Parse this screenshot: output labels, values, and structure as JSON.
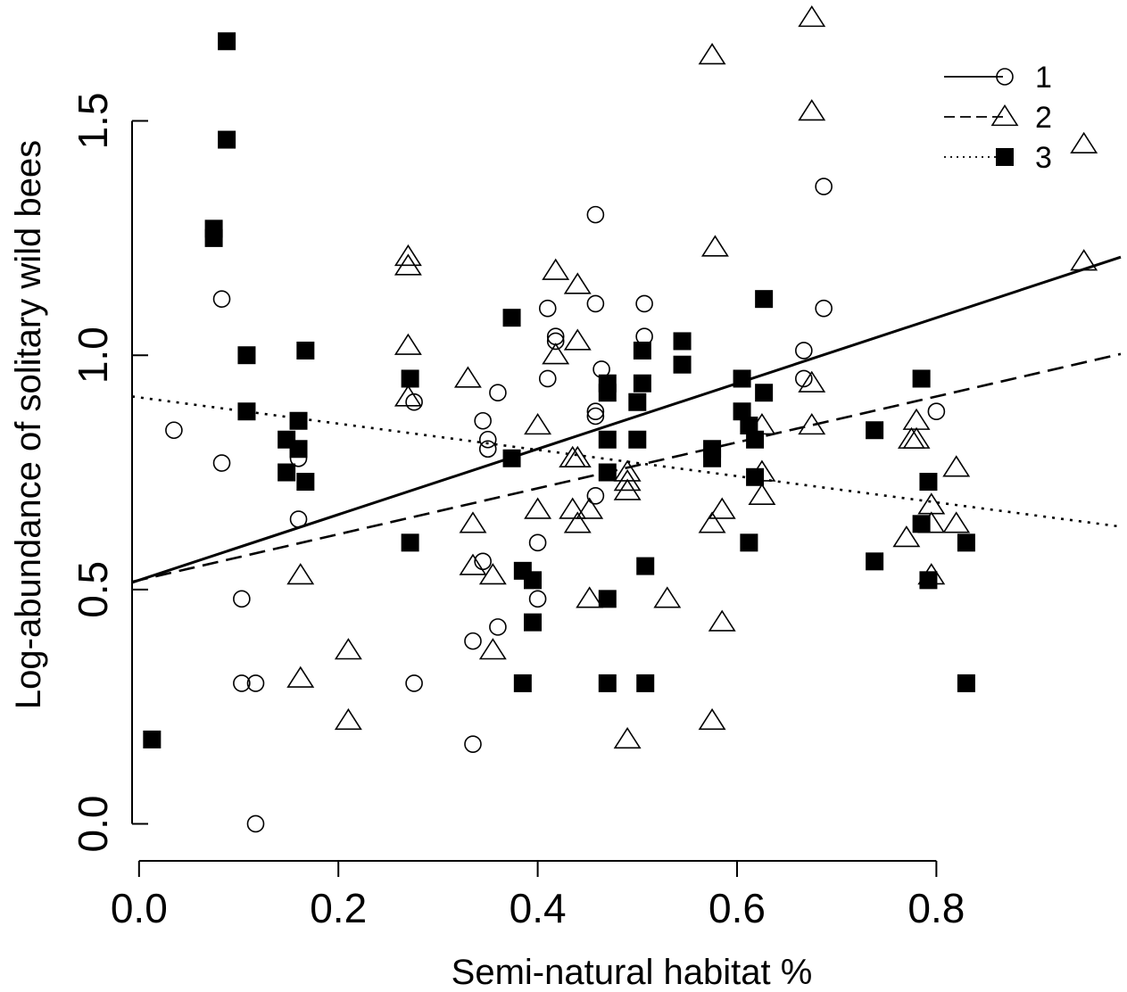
{
  "chart_data": {
    "type": "scatter",
    "xlabel": "Semi-natural habitat %",
    "ylabel": "Log-abundance of solitary wild bees",
    "xlim": [
      -0.007,
      0.985
    ],
    "ylim": [
      -0.06,
      1.72
    ],
    "xticks": [
      0.0,
      0.2,
      0.4,
      0.6,
      0.8
    ],
    "xtick_labels": [
      "0.0",
      "0.2",
      "0.4",
      "0.6",
      "0.8"
    ],
    "yticks": [
      0.0,
      0.5,
      1.0,
      1.5
    ],
    "ytick_labels": [
      "0.0",
      "0.5",
      "1.0",
      "1.5"
    ],
    "legend_position": "top-right",
    "grid": false,
    "series": [
      {
        "name": "1",
        "marker": "open-circle",
        "line_style": "solid",
        "fit": {
          "intercept": 0.52,
          "slope": 0.7
        },
        "points": [
          [
            0.035,
            0.84
          ],
          [
            0.083,
            1.12
          ],
          [
            0.083,
            0.77
          ],
          [
            0.103,
            0.48
          ],
          [
            0.103,
            0.3
          ],
          [
            0.117,
            0.3
          ],
          [
            0.117,
            0.0
          ],
          [
            0.16,
            0.78
          ],
          [
            0.16,
            0.65
          ],
          [
            0.276,
            0.9
          ],
          [
            0.276,
            0.3
          ],
          [
            0.335,
            0.39
          ],
          [
            0.335,
            0.17
          ],
          [
            0.345,
            0.56
          ],
          [
            0.345,
            0.86
          ],
          [
            0.35,
            0.82
          ],
          [
            0.35,
            0.8
          ],
          [
            0.36,
            0.92
          ],
          [
            0.36,
            0.42
          ],
          [
            0.4,
            0.6
          ],
          [
            0.4,
            0.48
          ],
          [
            0.41,
            1.1
          ],
          [
            0.41,
            0.95
          ],
          [
            0.418,
            1.04
          ],
          [
            0.418,
            1.03
          ],
          [
            0.458,
            1.3
          ],
          [
            0.458,
            1.11
          ],
          [
            0.458,
            0.88
          ],
          [
            0.458,
            0.87
          ],
          [
            0.458,
            0.7
          ],
          [
            0.464,
            0.97
          ],
          [
            0.507,
            1.11
          ],
          [
            0.507,
            1.04
          ],
          [
            0.667,
            1.01
          ],
          [
            0.667,
            0.95
          ],
          [
            0.687,
            1.36
          ],
          [
            0.687,
            1.1
          ],
          [
            0.8,
            0.88
          ]
        ]
      },
      {
        "name": "2",
        "marker": "open-triangle",
        "line_style": "dashed",
        "fit": {
          "intercept": 0.52,
          "slope": 0.49
        },
        "points": [
          [
            0.162,
            0.53
          ],
          [
            0.162,
            0.31
          ],
          [
            0.21,
            0.37
          ],
          [
            0.21,
            0.22
          ],
          [
            0.27,
            1.21
          ],
          [
            0.27,
            1.19
          ],
          [
            0.27,
            1.02
          ],
          [
            0.27,
            0.91
          ],
          [
            0.33,
            0.95
          ],
          [
            0.335,
            0.64
          ],
          [
            0.335,
            0.55
          ],
          [
            0.355,
            0.53
          ],
          [
            0.355,
            0.37
          ],
          [
            0.4,
            0.85
          ],
          [
            0.4,
            0.67
          ],
          [
            0.418,
            1.18
          ],
          [
            0.418,
            1.0
          ],
          [
            0.435,
            0.78
          ],
          [
            0.435,
            0.67
          ],
          [
            0.44,
            1.15
          ],
          [
            0.44,
            1.03
          ],
          [
            0.44,
            0.78
          ],
          [
            0.44,
            0.64
          ],
          [
            0.452,
            0.67
          ],
          [
            0.452,
            0.48
          ],
          [
            0.49,
            0.75
          ],
          [
            0.49,
            0.73
          ],
          [
            0.49,
            0.71
          ],
          [
            0.49,
            0.18
          ],
          [
            0.53,
            0.48
          ],
          [
            0.575,
            1.64
          ],
          [
            0.575,
            0.64
          ],
          [
            0.575,
            0.22
          ],
          [
            0.578,
            1.23
          ],
          [
            0.585,
            0.67
          ],
          [
            0.585,
            0.43
          ],
          [
            0.625,
            0.85
          ],
          [
            0.625,
            0.75
          ],
          [
            0.625,
            0.7
          ],
          [
            0.675,
            1.72
          ],
          [
            0.675,
            1.52
          ],
          [
            0.675,
            0.94
          ],
          [
            0.675,
            0.85
          ],
          [
            0.77,
            0.61
          ],
          [
            0.775,
            0.82
          ],
          [
            0.78,
            0.82
          ],
          [
            0.78,
            0.86
          ],
          [
            0.795,
            0.68
          ],
          [
            0.795,
            0.64
          ],
          [
            0.795,
            0.53
          ],
          [
            0.82,
            0.76
          ],
          [
            0.82,
            0.64
          ],
          [
            0.948,
            1.45
          ],
          [
            0.948,
            1.2
          ]
        ]
      },
      {
        "name": "3",
        "marker": "filled-square",
        "line_style": "dotted",
        "fit": {
          "intercept": 0.91,
          "slope": -0.28
        },
        "points": [
          [
            0.013,
            0.18
          ],
          [
            0.075,
            1.27
          ],
          [
            0.075,
            1.25
          ],
          [
            0.088,
            1.67
          ],
          [
            0.088,
            1.46
          ],
          [
            0.108,
            1.0
          ],
          [
            0.108,
            0.88
          ],
          [
            0.148,
            0.82
          ],
          [
            0.148,
            0.75
          ],
          [
            0.16,
            0.86
          ],
          [
            0.16,
            0.8
          ],
          [
            0.167,
            1.01
          ],
          [
            0.167,
            0.73
          ],
          [
            0.272,
            0.95
          ],
          [
            0.272,
            0.6
          ],
          [
            0.374,
            1.08
          ],
          [
            0.374,
            0.78
          ],
          [
            0.385,
            0.54
          ],
          [
            0.385,
            0.3
          ],
          [
            0.395,
            0.52
          ],
          [
            0.395,
            0.43
          ],
          [
            0.47,
            0.94
          ],
          [
            0.47,
            0.92
          ],
          [
            0.47,
            0.82
          ],
          [
            0.47,
            0.75
          ],
          [
            0.47,
            0.48
          ],
          [
            0.47,
            0.3
          ],
          [
            0.5,
            0.9
          ],
          [
            0.5,
            0.82
          ],
          [
            0.505,
            1.01
          ],
          [
            0.505,
            0.94
          ],
          [
            0.508,
            0.55
          ],
          [
            0.508,
            0.3
          ],
          [
            0.545,
            1.03
          ],
          [
            0.545,
            0.98
          ],
          [
            0.575,
            0.8
          ],
          [
            0.575,
            0.78
          ],
          [
            0.605,
            0.95
          ],
          [
            0.605,
            0.88
          ],
          [
            0.612,
            0.85
          ],
          [
            0.612,
            0.6
          ],
          [
            0.618,
            0.82
          ],
          [
            0.618,
            0.74
          ],
          [
            0.627,
            1.12
          ],
          [
            0.627,
            0.92
          ],
          [
            0.738,
            0.84
          ],
          [
            0.738,
            0.56
          ],
          [
            0.785,
            0.95
          ],
          [
            0.785,
            0.64
          ],
          [
            0.792,
            0.73
          ],
          [
            0.792,
            0.52
          ],
          [
            0.83,
            0.6
          ],
          [
            0.83,
            0.3
          ]
        ]
      }
    ]
  }
}
